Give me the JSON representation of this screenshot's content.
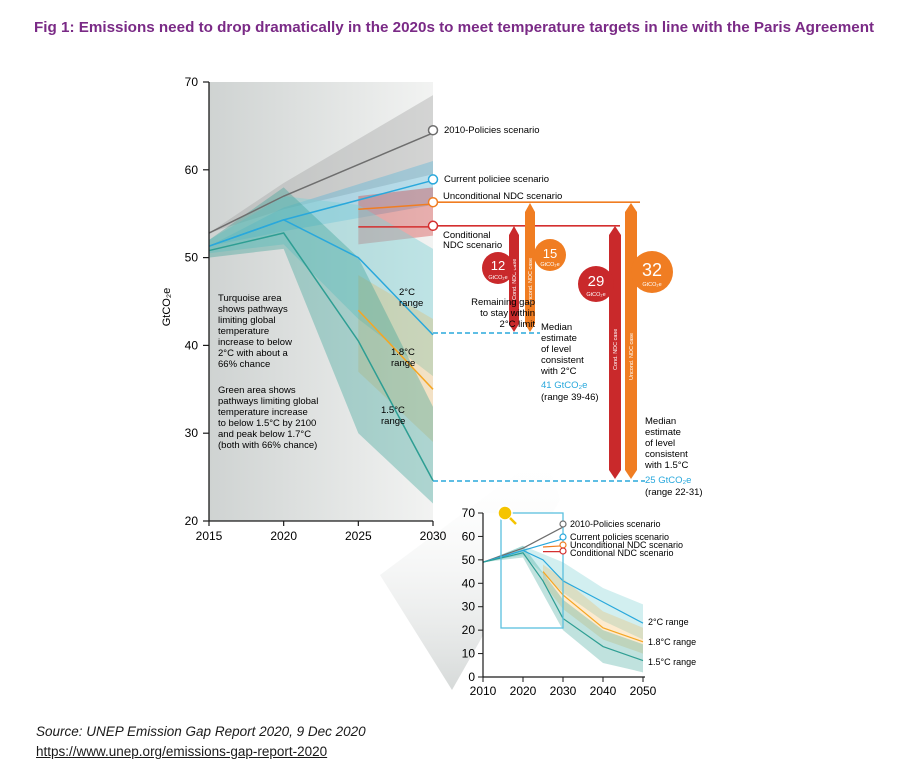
{
  "title": "Fig 1: Emissions need to drop dramatically in the 2020s to meet temperature targets in line with the Paris Agreement",
  "source": "Source: UNEP Emission Gap Report 2020, 9 Dec 2020",
  "link": "https://www.unep.org/emissions-gap-report-2020",
  "colors": {
    "title": "#7a2a86",
    "policies2010": "#6e6e6e",
    "current": "#29a8dc",
    "uncond": "#f07d22",
    "cond": "#d42f2f",
    "turquoise": "#7fd0d4",
    "green": "#9fd3b3",
    "orange": "#f5a623",
    "teal": "#2e9e93"
  },
  "chart_data": [
    {
      "type": "line",
      "xlabel": "",
      "ylabel": "GtCO₂e",
      "xlim": [
        2015,
        2030
      ],
      "ylim": [
        20,
        70
      ],
      "x_ticks": [
        "2015",
        "2020",
        "2025",
        "2030"
      ],
      "y_ticks": [
        "20",
        "30",
        "40",
        "50",
        "60",
        "70"
      ],
      "series": [
        {
          "name": "2010-Policies scenario",
          "x": [
            2015,
            2020,
            2030
          ],
          "y": [
            52.8,
            57,
            64.2
          ],
          "band": [
            [
              2015,
              52.8,
              52.8
            ],
            [
              2020,
              55.5,
              58.5
            ],
            [
              2030,
              59.5,
              68.5
            ]
          ]
        },
        {
          "name": "Current policiee scenario",
          "x": [
            2015,
            2020,
            2030
          ],
          "y": [
            51.3,
            54.3,
            58.8
          ],
          "band": [
            [
              2015,
              51.3,
              51.3
            ],
            [
              2020,
              53,
              55.7
            ],
            [
              2030,
              56,
              61
            ]
          ]
        },
        {
          "name": "Unconditional NDC scenario",
          "x": [
            2025,
            2030
          ],
          "y": [
            55.5,
            56.1
          ],
          "band": [
            [
              2025,
              51.5,
              57
            ],
            [
              2030,
              52.5,
              58
            ]
          ]
        },
        {
          "name": "Conditional NDC scenario",
          "x": [
            2025,
            2030
          ],
          "y": [
            53.5,
            53.5
          ],
          "band": []
        },
        {
          "name": "2°C range",
          "x": [
            2015,
            2020,
            2025,
            2030
          ],
          "y": [
            51.3,
            54.3,
            50,
            41.2
          ],
          "band": [
            [
              2015,
              50.5,
              52
            ],
            [
              2020,
              51.5,
              57
            ],
            [
              2025,
              43,
              56
            ],
            [
              2030,
              36.5,
              51
            ]
          ]
        },
        {
          "name": "1.8°C range",
          "x": [
            2025,
            2030
          ],
          "y": [
            44,
            35
          ],
          "band": [
            [
              2025,
              37,
              48
            ],
            [
              2030,
              29,
              43
            ]
          ]
        },
        {
          "name": "1.5°C range",
          "x": [
            2015,
            2020,
            2025,
            2030
          ],
          "y": [
            50.8,
            52.8,
            40.5,
            24.6
          ],
          "band": [
            [
              2015,
              50,
              52
            ],
            [
              2020,
              51,
              58
            ],
            [
              2025,
              30,
              50
            ],
            [
              2030,
              22,
              33
            ]
          ]
        }
      ],
      "gaps": [
        {
          "label": "12",
          "unit": "GtCO₂e",
          "bar_label": "Cond. NDC case",
          "from": 53.5,
          "to": 41.2
        },
        {
          "label": "15",
          "unit": "GtCO₂e",
          "bar_label": "Uncond. NDC case",
          "from": 56.1,
          "to": 41.2
        },
        {
          "label": "29",
          "unit": "GtCO₂e",
          "bar_label": "Cond. NDC case",
          "from": 53.5,
          "to": 24.6
        },
        {
          "label": "32",
          "unit": "GtCO₂e",
          "bar_label": "Uncond. NDC case",
          "from": 56.1,
          "to": 24.6
        }
      ],
      "annotations": {
        "conditional": [
          "Conditional",
          "NDC scenario"
        ],
        "gap": [
          "Remaining gap",
          "to stay within",
          "2°C limit"
        ],
        "median2": [
          "Median",
          "estimate",
          "of level",
          "consistent",
          "with 2°C"
        ],
        "median2_value": "41 GtCO₂e",
        "median2_range": "(range 39-46)",
        "median15": [
          "Median",
          "estimate",
          "of level",
          "consistent",
          "with 1.5°C"
        ],
        "median15_value": "25 GtCO₂e",
        "median15_range": "(range 22-31)",
        "turquoise_note": [
          "Turquoise area",
          "shows pathways",
          "limiting global",
          "temperature",
          "increase to below",
          "2°C with about a",
          "66% chance"
        ],
        "green_note": [
          "Green area shows",
          "pathways limiting global",
          "temperature increase",
          "to below 1.5°C by 2100",
          "and peak below 1.7°C",
          "(both with 66% chance)"
        ],
        "label_2c": [
          "2°C",
          "range"
        ],
        "label_18c": [
          "1.8°C",
          "range"
        ],
        "label_15c": [
          "1.5°C",
          "range"
        ]
      }
    },
    {
      "type": "line",
      "xlabel": "",
      "ylabel": "",
      "xlim": [
        2010,
        2050
      ],
      "ylim": [
        0,
        70
      ],
      "x_ticks": [
        "2010",
        "2020",
        "2030",
        "2040",
        "2050"
      ],
      "y_ticks": [
        "0",
        "10",
        "20",
        "30",
        "40",
        "50",
        "60",
        "70"
      ],
      "series": [
        {
          "name": "2010-Policies scenario",
          "x": [
            2010,
            2020,
            2030
          ],
          "y": [
            49,
            55,
            64
          ]
        },
        {
          "name": "Current policies scenario",
          "x": [
            2010,
            2020,
            2030
          ],
          "y": [
            49,
            54,
            59
          ]
        },
        {
          "name": "Unconditional NDC scenario",
          "x": [
            2025,
            2030
          ],
          "y": [
            55.5,
            56
          ]
        },
        {
          "name": "Conditional NDC scenario",
          "x": [
            2025,
            2030
          ],
          "y": [
            53.5,
            53.5
          ]
        },
        {
          "name": "2°C range",
          "x": [
            2010,
            2020,
            2025,
            2030,
            2040,
            2050
          ],
          "y": [
            49,
            54,
            50,
            41,
            32,
            23
          ],
          "band": [
            [
              2010,
              49,
              49
            ],
            [
              2020,
              52,
              56
            ],
            [
              2030,
              36,
              49
            ],
            [
              2040,
              24,
              38
            ],
            [
              2050,
              16,
              31
            ]
          ]
        },
        {
          "name": "1.8°C range",
          "x": [
            2025,
            2030,
            2040,
            2050
          ],
          "y": [
            45,
            35,
            21,
            15
          ],
          "band": [
            [
              2025,
              40,
              48
            ],
            [
              2030,
              29,
              42
            ],
            [
              2040,
              16,
              28
            ],
            [
              2050,
              10,
              21
            ]
          ]
        },
        {
          "name": "1.5°C range",
          "x": [
            2010,
            2020,
            2025,
            2030,
            2040,
            2050
          ],
          "y": [
            49,
            53,
            41,
            25,
            13,
            7
          ],
          "band": [
            [
              2010,
              49,
              49
            ],
            [
              2020,
              51,
              56
            ],
            [
              2030,
              20,
              33
            ],
            [
              2040,
              6,
              20
            ],
            [
              2050,
              2,
              14
            ]
          ]
        }
      ],
      "zoom_box": {
        "x": [
          2014,
          2029
        ],
        "y": [
          21,
          70
        ]
      }
    }
  ]
}
